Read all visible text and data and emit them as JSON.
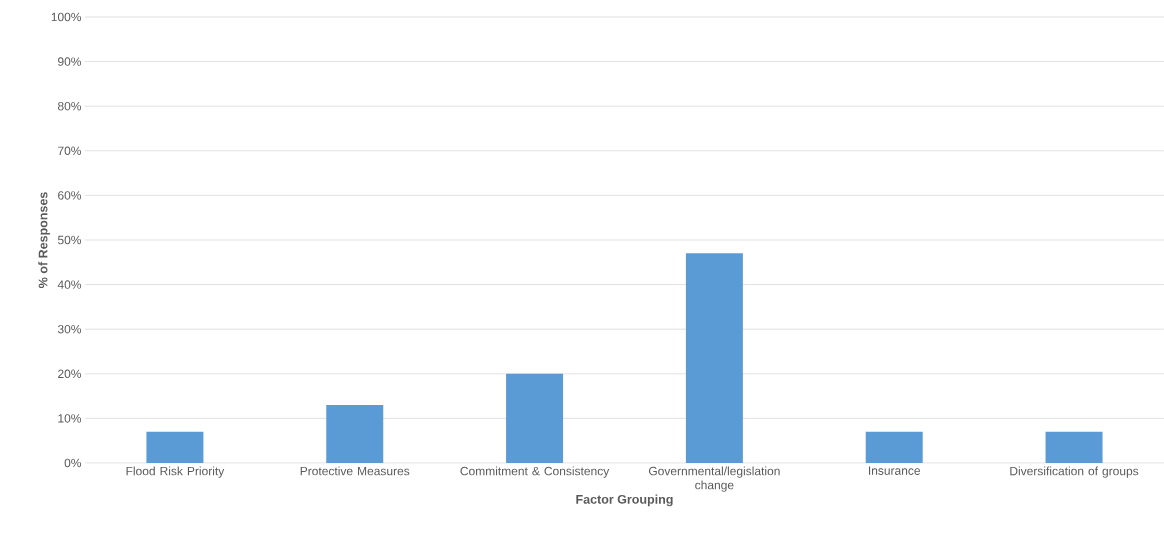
{
  "chart_data": {
    "type": "bar",
    "xlabel": "Factor Grouping",
    "ylabel": "% of Responses",
    "categories": [
      "Flood Risk Priority",
      "Protective Measures",
      "Commitment & Consistency",
      "Governmental/legislation change",
      "Insurance",
      "Diversification of groups"
    ],
    "values": [
      7,
      13,
      20,
      47,
      7,
      7
    ],
    "color": "#5b9bd5",
    "ylim": [
      0,
      100
    ],
    "yticks": [
      {
        "value": 0,
        "label": "0%"
      },
      {
        "value": 10,
        "label": "10%"
      },
      {
        "value": 20,
        "label": "20%"
      },
      {
        "value": 30,
        "label": "30%"
      },
      {
        "value": 40,
        "label": "40%"
      },
      {
        "value": 50,
        "label": "50%"
      },
      {
        "value": 60,
        "label": "60%"
      },
      {
        "value": 70,
        "label": "70%"
      },
      {
        "value": 80,
        "label": "80%"
      },
      {
        "value": 90,
        "label": "90%"
      },
      {
        "value": 100,
        "label": "100%"
      }
    ],
    "grid": "y"
  }
}
